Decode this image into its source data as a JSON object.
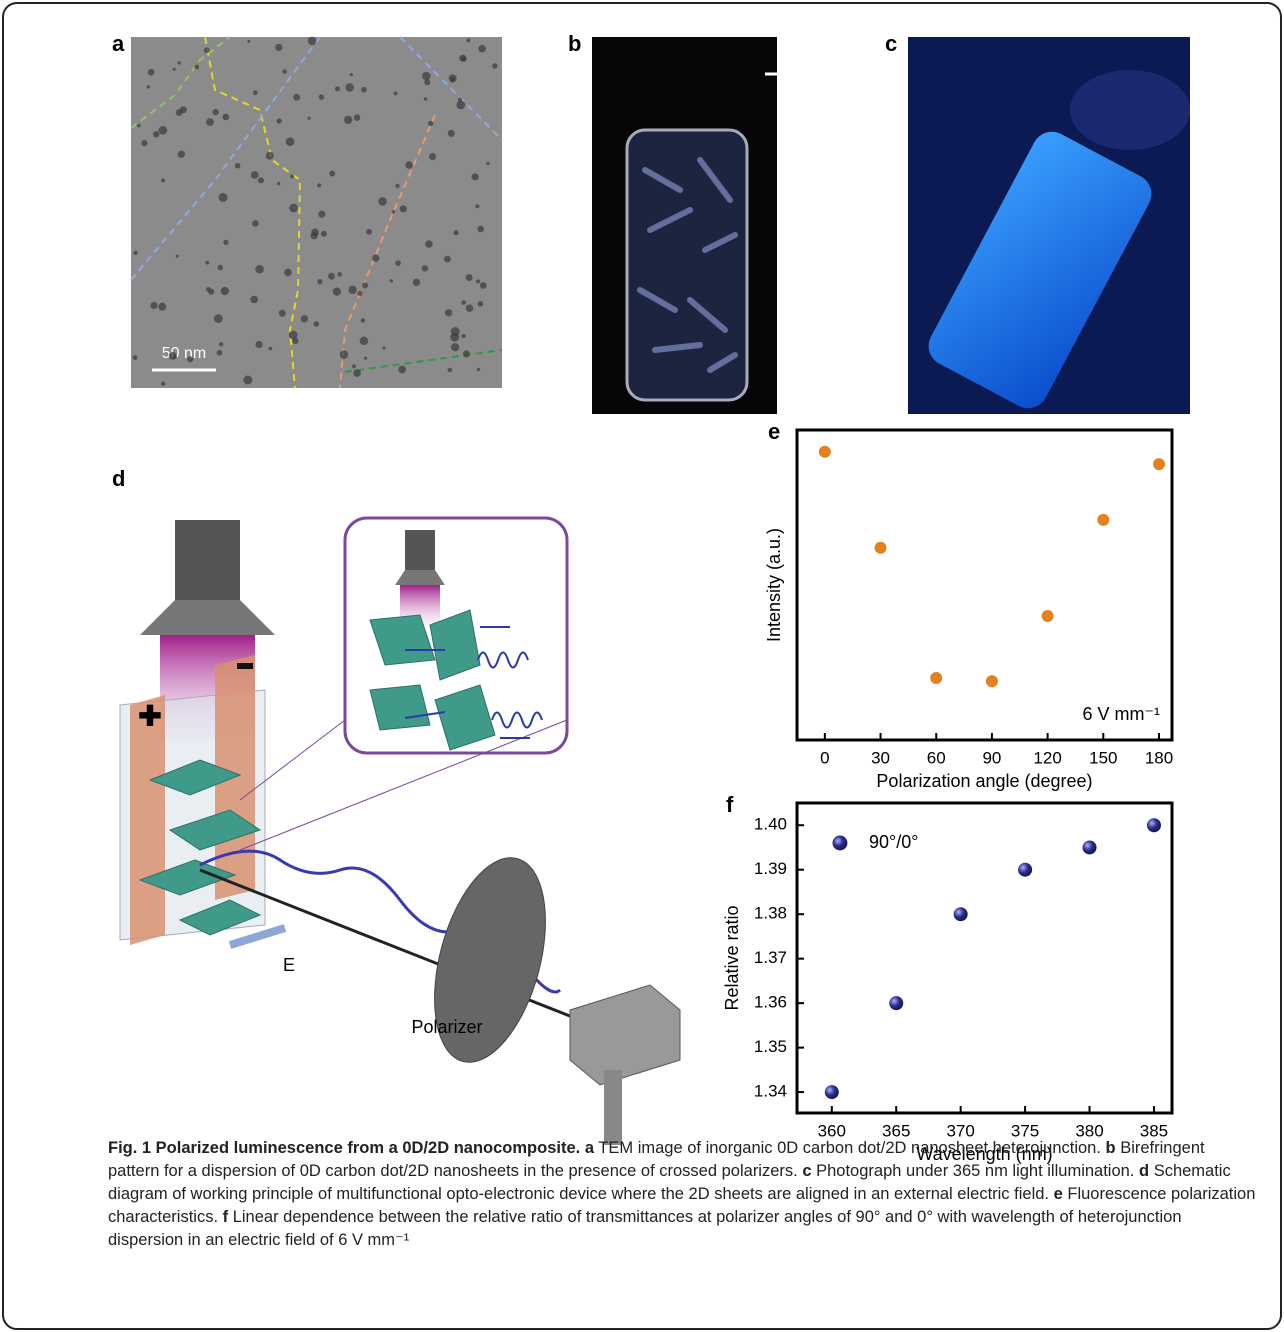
{
  "panels": {
    "a": {
      "label": "a",
      "scale_bar": "50 nm"
    },
    "b": {
      "label": "b"
    },
    "c": {
      "label": "c"
    },
    "d": {
      "label": "d",
      "field_label": "E",
      "polarizer_label": "Polarizer"
    }
  },
  "chart_data": [
    {
      "type": "scatter",
      "panel": "e",
      "x_label": "Polarization angle (degree)",
      "y_label": "Intensity (a.u.)",
      "annotation": "6 V mm⁻¹",
      "x": [
        0,
        30,
        60,
        90,
        120,
        150,
        180
      ],
      "values": [
        0.93,
        0.62,
        0.2,
        0.19,
        0.4,
        0.71,
        0.89
      ],
      "color": "#e5801f",
      "xlim": [
        -15,
        187
      ],
      "xticks": [
        0,
        30,
        60,
        90,
        120,
        150,
        180
      ],
      "ylim": [
        0,
        1
      ]
    },
    {
      "type": "scatter",
      "panel": "f",
      "x_label": "Wavelength (nm)",
      "y_label": "Relative ratio",
      "series": [
        {
          "name": "90°/0°",
          "color": "#2c2f8c",
          "x": [
            360,
            365,
            370,
            375,
            380,
            385
          ],
          "values": [
            1.34,
            1.36,
            1.38,
            1.39,
            1.395,
            1.4
          ]
        }
      ],
      "xlim": [
        357.3,
        386.4
      ],
      "xticks": [
        360,
        365,
        370,
        375,
        380,
        385
      ],
      "ylim": [
        1.3353,
        1.405
      ],
      "yticks": [
        1.34,
        1.35,
        1.36,
        1.37,
        1.38,
        1.39,
        {
          "value": 1.4,
          "label": "1.40"
        }
      ],
      "legend": "upper left"
    }
  ],
  "caption": {
    "title": "Fig. 1 Polarized luminescence from a 0D/2D nanocomposite.",
    "items": [
      {
        "letter": "a",
        "text": "TEM image of inorganic 0D carbon dot/2D nanosheet heterojunction."
      },
      {
        "letter": "b",
        "text": "Birefringent pattern for a dispersion of 0D carbon dot/2D nanosheets in the presence of crossed polarizers."
      },
      {
        "letter": "c",
        "text": "Photograph under 365 nm light illumination."
      },
      {
        "letter": "d",
        "text": "Schematic diagram of working principle of multifunctional opto-electronic device where the 2D sheets are aligned in an external electric field."
      },
      {
        "letter": "e",
        "text": "Fluorescence polarization characteristics."
      },
      {
        "letter": "f",
        "text": "Linear dependence between the relative ratio of transmittances at polarizer angles of 90° and 0° with wavelength of heterojunction dispersion in an electric field of 6 V mm⁻¹"
      }
    ]
  }
}
